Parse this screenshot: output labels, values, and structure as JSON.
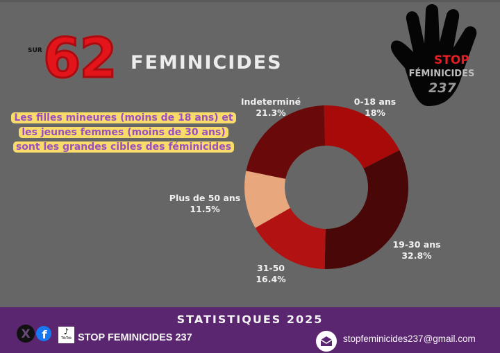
{
  "header": {
    "prefix": "SUR",
    "number": "62",
    "title": "FEMINICIDES"
  },
  "callout": "Les filles mineures (moins de 18 ans) et les jeunes femmes (moins de 30 ans) sont les grandes cibles des féminicides",
  "logo": {
    "line1": "STOP",
    "line2": "FÉMINICIDES",
    "line3": "237"
  },
  "chart_data": {
    "type": "pie",
    "donut": true,
    "slices": [
      {
        "label": "0-18 ans",
        "value": 18,
        "value_label": "18%",
        "color": "#a80a0a"
      },
      {
        "label": "19-30 ans",
        "value": 32.8,
        "value_label": "32.8%",
        "color": "#4a0707"
      },
      {
        "label": "31-50",
        "value": 16.4,
        "value_label": "16.4%",
        "color": "#b31212"
      },
      {
        "label": "Plus de 50 ans",
        "value": 11.5,
        "value_label": "11.5%",
        "color": "#e8a77c"
      },
      {
        "label": "Indeterminé",
        "value": 21.3,
        "value_label": "21.3%",
        "color": "#6a0909"
      }
    ]
  },
  "footer": {
    "title": "STATISTIQUES 2025",
    "brand": "STOP FEMINICIDES 237",
    "email": "stopfeminicides237@gmail.com",
    "tiktok_label": "TikTok",
    "colors": {
      "band": "#5b2670"
    }
  }
}
